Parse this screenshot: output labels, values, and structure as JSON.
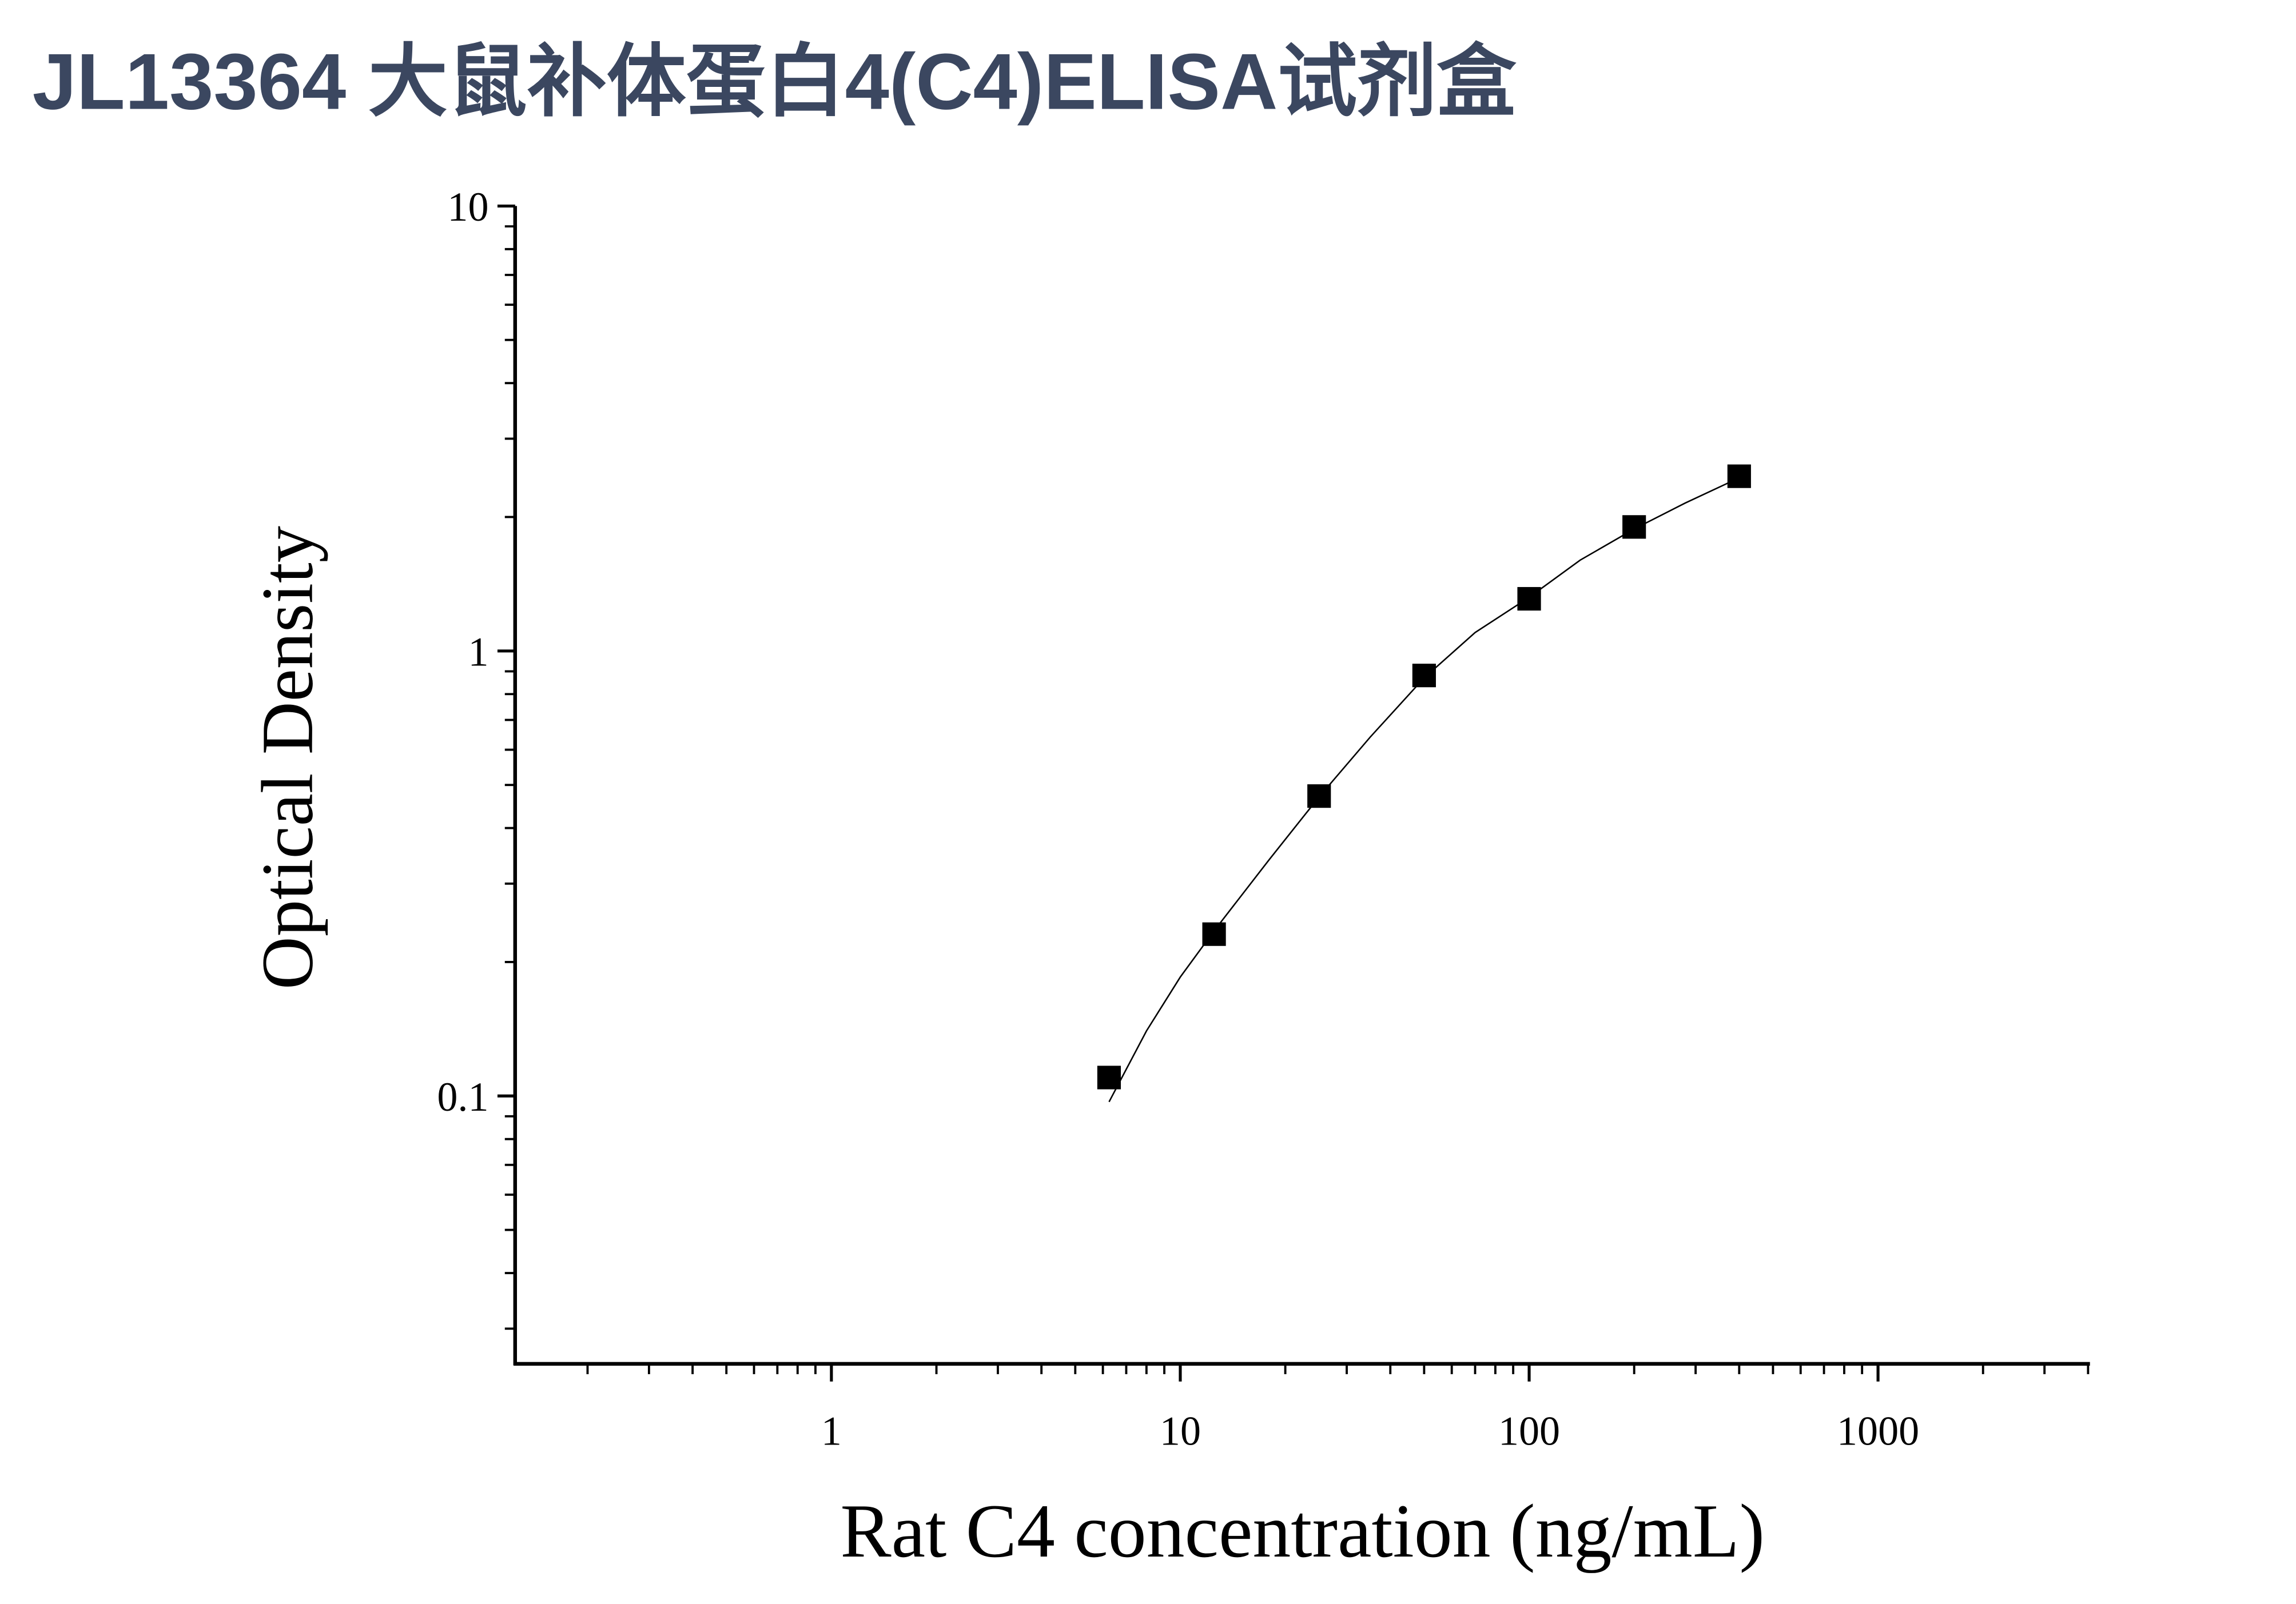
{
  "chart_data": {
    "type": "scatter",
    "title": "JL13364 大鼠补体蛋白4(C4)ELISA试剂盒",
    "x_label": "Rat C4 concentration (ng/mL)",
    "y_label": "Optical Density",
    "xscale": "log",
    "yscale": "log",
    "xlim": [
      0.124,
      4050
    ],
    "ylim": [
      0.025,
      10
    ],
    "xticks": [
      1,
      10,
      100,
      1000
    ],
    "yticks": [
      0.1,
      1,
      10
    ],
    "xminorticks": [
      0.2,
      0.3,
      0.4,
      0.5,
      0.6,
      0.7,
      0.8,
      0.9,
      2,
      3,
      4,
      5,
      6,
      7,
      8,
      9,
      20,
      30,
      40,
      50,
      60,
      70,
      80,
      90,
      200,
      300,
      400,
      500,
      600,
      700,
      800,
      900,
      2000,
      3000,
      4000
    ],
    "yminorticks": [
      0.03,
      0.04,
      0.05,
      0.06,
      0.07,
      0.08,
      0.09,
      0.2,
      0.3,
      0.4,
      0.5,
      0.6,
      0.7,
      0.8,
      0.9,
      2,
      3,
      4,
      5,
      6,
      7,
      8,
      9
    ],
    "color": "#000000",
    "x": [
      6.25,
      12.5,
      25,
      50,
      100,
      200,
      400
    ],
    "values": [
      0.11,
      0.231,
      0.472,
      0.881,
      1.31,
      1.9,
      2.47
    ],
    "fit": {
      "x": [
        6.25,
        8,
        10,
        12.5,
        18,
        25,
        35,
        50,
        70,
        100,
        140,
        200,
        280,
        400
      ],
      "values": [
        0.097,
        0.14,
        0.185,
        0.235,
        0.34,
        0.47,
        0.64,
        0.87,
        1.1,
        1.32,
        1.6,
        1.88,
        2.15,
        2.45
      ]
    }
  }
}
